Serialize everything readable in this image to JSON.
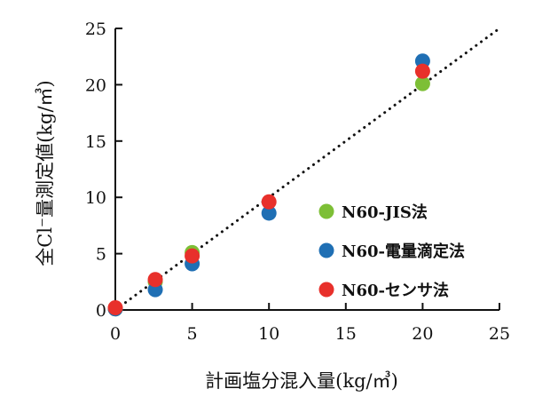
{
  "chart_data": {
    "type": "scatter",
    "xlabel": "計画塩分混入量(kg/㎥)",
    "ylabel": "全Cl⁻量測定値(kg/㎥)",
    "xlim": [
      0,
      25
    ],
    "ylim": [
      0,
      25
    ],
    "xticks": [
      "0",
      "5",
      "10",
      "15",
      "20",
      "25"
    ],
    "yticks": [
      "0",
      "5",
      "10",
      "15",
      "20",
      "25"
    ],
    "grid": false,
    "legend_position": "right",
    "reference_line": {
      "style": "dotted",
      "points": [
        [
          0,
          0
        ],
        [
          25,
          25
        ]
      ]
    },
    "series": [
      {
        "name": "N60-JIS法",
        "color": "#7dbf36",
        "points": [
          [
            0,
            0.1
          ],
          [
            2.6,
            2.5
          ],
          [
            5,
            5.1
          ],
          [
            20,
            20.1
          ]
        ]
      },
      {
        "name": "N60-電量滴定法",
        "color": "#1f6fb4",
        "points": [
          [
            0,
            0.1
          ],
          [
            2.6,
            1.8
          ],
          [
            5,
            4.1
          ],
          [
            10,
            8.6
          ],
          [
            20,
            22.1
          ]
        ]
      },
      {
        "name": "N60-センサ法",
        "color": "#e8302b",
        "points": [
          [
            0,
            0.2
          ],
          [
            2.6,
            2.7
          ],
          [
            5,
            4.8
          ],
          [
            10,
            9.6
          ],
          [
            20,
            21.2
          ]
        ]
      }
    ]
  }
}
